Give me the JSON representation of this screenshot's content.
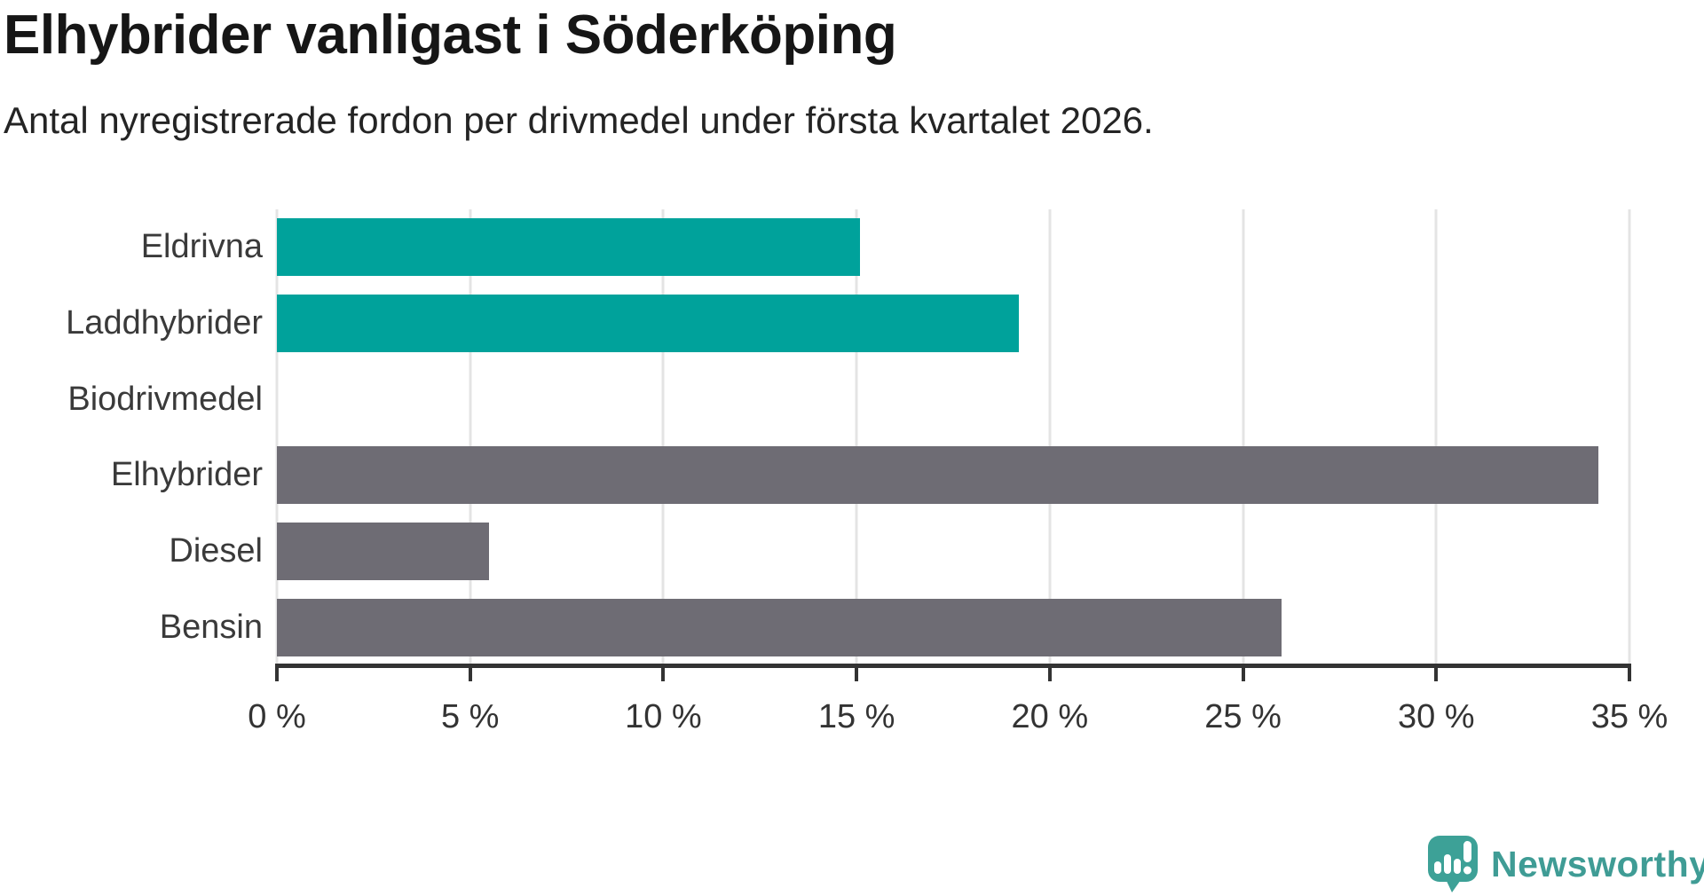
{
  "chart_data": {
    "type": "bar",
    "orientation": "horizontal",
    "title": "Elhybrider vanligast i Söderköping",
    "subtitle": "Antal nyregistrerade fordon per drivmedel under första kvartalet 2026.",
    "categories": [
      "Eldrivna",
      "Laddhybrider",
      "Biodrivmedel",
      "Elhybrider",
      "Diesel",
      "Bensin"
    ],
    "values": [
      15.1,
      19.2,
      0,
      34.2,
      5.5,
      26.0
    ],
    "unit": "%",
    "bar_colors": [
      "#00a29b",
      "#00a29b",
      "#00a29b",
      "#6e6c74",
      "#6e6c74",
      "#6e6c74"
    ],
    "highlight_color": "#00a29b",
    "default_color": "#6e6c74",
    "xlabel": "",
    "ylabel": "",
    "xlim": [
      0,
      35
    ],
    "x_ticks": [
      0,
      5,
      10,
      15,
      20,
      25,
      30,
      35
    ],
    "x_tick_labels": [
      "0 %",
      "5 %",
      "10 %",
      "15 %",
      "20 %",
      "25 %",
      "30 %",
      "35 %"
    ],
    "grid": "vertical",
    "legend": "none",
    "gridline_color": "#e4e4e4",
    "axis_color": "#333333",
    "label_color": "#3a3a3a"
  },
  "footer": {
    "brand": "Newsworthy",
    "brand_color": "#3f9c95",
    "logo_icon_color": "#3da197",
    "logo_icon": "newsworthy-speech-bubble-chart-icon"
  }
}
